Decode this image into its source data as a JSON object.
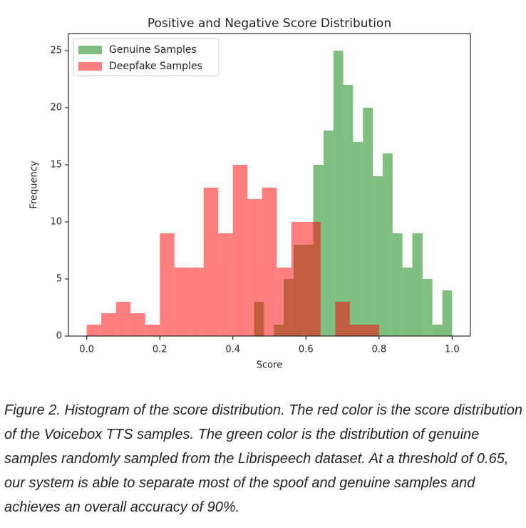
{
  "chart_data": {
    "type": "histogram",
    "title": "Positive and Negative Score Distribution",
    "x_label": "Score",
    "y_label": "Frequency",
    "series": [
      {
        "name": "Genuine Samples",
        "color": "#008000",
        "bins": [
          0.458,
          0.485,
          0.512,
          0.539,
          0.566,
          0.593,
          0.62,
          0.648,
          0.675,
          0.702,
          0.729,
          0.756,
          0.783,
          0.81,
          0.837,
          0.864,
          0.891,
          0.919,
          0.946,
          0.973,
          1.0
        ],
        "values": [
          3,
          0,
          1,
          5,
          8,
          8,
          15,
          18,
          25,
          22,
          17,
          20,
          14,
          16,
          9,
          6,
          9,
          5,
          1,
          4
        ]
      },
      {
        "name": "Deepfake Samples",
        "color": "#ff0000",
        "bins": [
          0,
          0.04,
          0.08,
          0.12,
          0.16,
          0.2,
          0.24,
          0.28,
          0.32,
          0.36,
          0.4,
          0.44,
          0.48,
          0.52,
          0.56,
          0.6,
          0.64,
          0.68,
          0.72,
          0.76,
          0.8
        ],
        "values": [
          1,
          2,
          3,
          2,
          1,
          9,
          6,
          6,
          13,
          9,
          15,
          12,
          13,
          6,
          10,
          10,
          0,
          3,
          1,
          1
        ]
      }
    ],
    "opacity": 0.5,
    "xlim": [
      -0.05,
      1.05
    ],
    "ylim": [
      0,
      26.5
    ],
    "xticks": [
      {
        "value": 0,
        "label": "0.0"
      },
      0.2,
      0.4,
      0.6,
      0.8,
      {
        "value": 1,
        "label": "1.0"
      }
    ],
    "yticks": [
      0,
      5,
      10,
      15,
      20,
      25
    ],
    "legend": "upper left"
  },
  "caption": "Figure 2. Histogram of the score distribution. The red color is the score distribution of the Voicebox TTS samples. The green color is the distribution of genuine samples randomly sampled from the Librispeech dataset. At a threshold of 0.65, our system is able to separate most of the spoof and genuine samples and achieves an overall accuracy of 90%."
}
